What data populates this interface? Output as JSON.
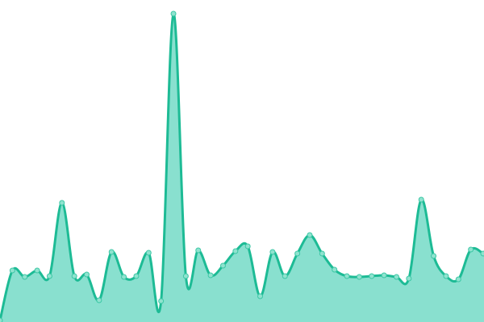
{
  "chart_data": {
    "type": "area",
    "title": "",
    "xlabel": "",
    "ylabel": "",
    "grid": false,
    "legend": "none",
    "ylim": [
      0,
      400
    ],
    "x": [
      0,
      1,
      2,
      3,
      4,
      5,
      6,
      7,
      8,
      9,
      10,
      11,
      12,
      13,
      14,
      15,
      16,
      17,
      18,
      19,
      20,
      21,
      22,
      23,
      24,
      25,
      26,
      27,
      28,
      29,
      30,
      31,
      32,
      33,
      34,
      35,
      36,
      37,
      38,
      39
    ],
    "values": [
      2,
      64,
      56,
      64,
      57,
      148,
      57,
      59,
      27,
      87,
      56,
      57,
      86,
      26,
      383,
      57,
      89,
      58,
      70,
      88,
      94,
      32,
      87,
      57,
      85,
      108,
      85,
      65,
      57,
      56,
      57,
      58,
      56,
      54,
      152,
      82,
      57,
      53,
      90,
      85
    ],
    "colors": {
      "line": "#1dbb95",
      "fill": "#89e0cf",
      "point_fill": "#8fe3cf",
      "point_stroke": "#3cc7a5"
    }
  }
}
